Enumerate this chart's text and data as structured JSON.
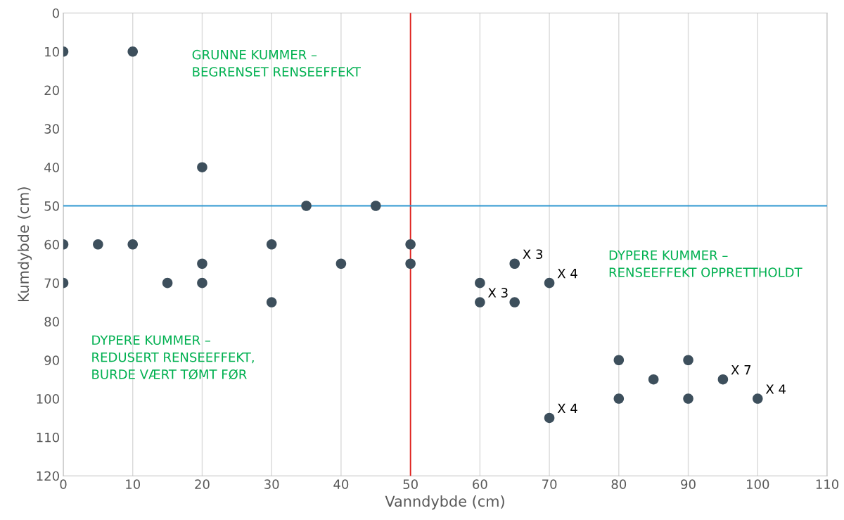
{
  "chart_data": {
    "type": "scatter",
    "xlabel": "Vanndybde (cm)",
    "ylabel": "Kumdybde (cm)",
    "x": [
      0,
      10,
      20,
      35,
      45,
      0,
      5,
      10,
      30,
      50,
      20,
      40,
      50,
      65,
      0,
      15,
      20,
      60,
      70,
      30,
      60,
      65,
      80,
      90,
      85,
      95,
      80,
      90,
      100,
      70
    ],
    "values": [
      10,
      10,
      40,
      50,
      50,
      60,
      60,
      60,
      60,
      60,
      65,
      65,
      65,
      65,
      70,
      70,
      70,
      70,
      70,
      75,
      75,
      75,
      90,
      90,
      95,
      95,
      100,
      100,
      100,
      105
    ],
    "color": "#3d4f5c",
    "marker": "circle",
    "xlim": [
      0,
      110
    ],
    "xticks": [
      0,
      10,
      20,
      30,
      40,
      50,
      60,
      70,
      80,
      90,
      100,
      110
    ],
    "ylim": [
      120,
      0
    ],
    "yticks": [
      0,
      10,
      20,
      30,
      40,
      50,
      60,
      70,
      80,
      90,
      100,
      110,
      120
    ],
    "grid": "x",
    "ref_lines": [
      {
        "axis": "x",
        "value": 50,
        "color": "#e0201b"
      },
      {
        "axis": "y",
        "value": 50,
        "color": "#2f97d1"
      }
    ],
    "annotations": [
      {
        "text": "X 3",
        "x": 65,
        "y": 65
      },
      {
        "text": "X 4",
        "x": 70,
        "y": 70
      },
      {
        "text": "X 3",
        "x": 60,
        "y": 75
      },
      {
        "text": "X 7",
        "x": 95,
        "y": 95
      },
      {
        "text": "X 4",
        "x": 100,
        "y": 100
      },
      {
        "text": "X 4",
        "x": 70,
        "y": 105
      },
      "GRUNNE KUMMER –\nBEGRENSET RENSEEFFEKT",
      "DYPERE KUMMER –\nRENSEEFFEKT OPPRETTHOLDT",
      "DYPERE KUMMER –\nREDUSERT RENSEEFFEKT,\nBURDE VÆRT TØMT FØR"
    ]
  }
}
